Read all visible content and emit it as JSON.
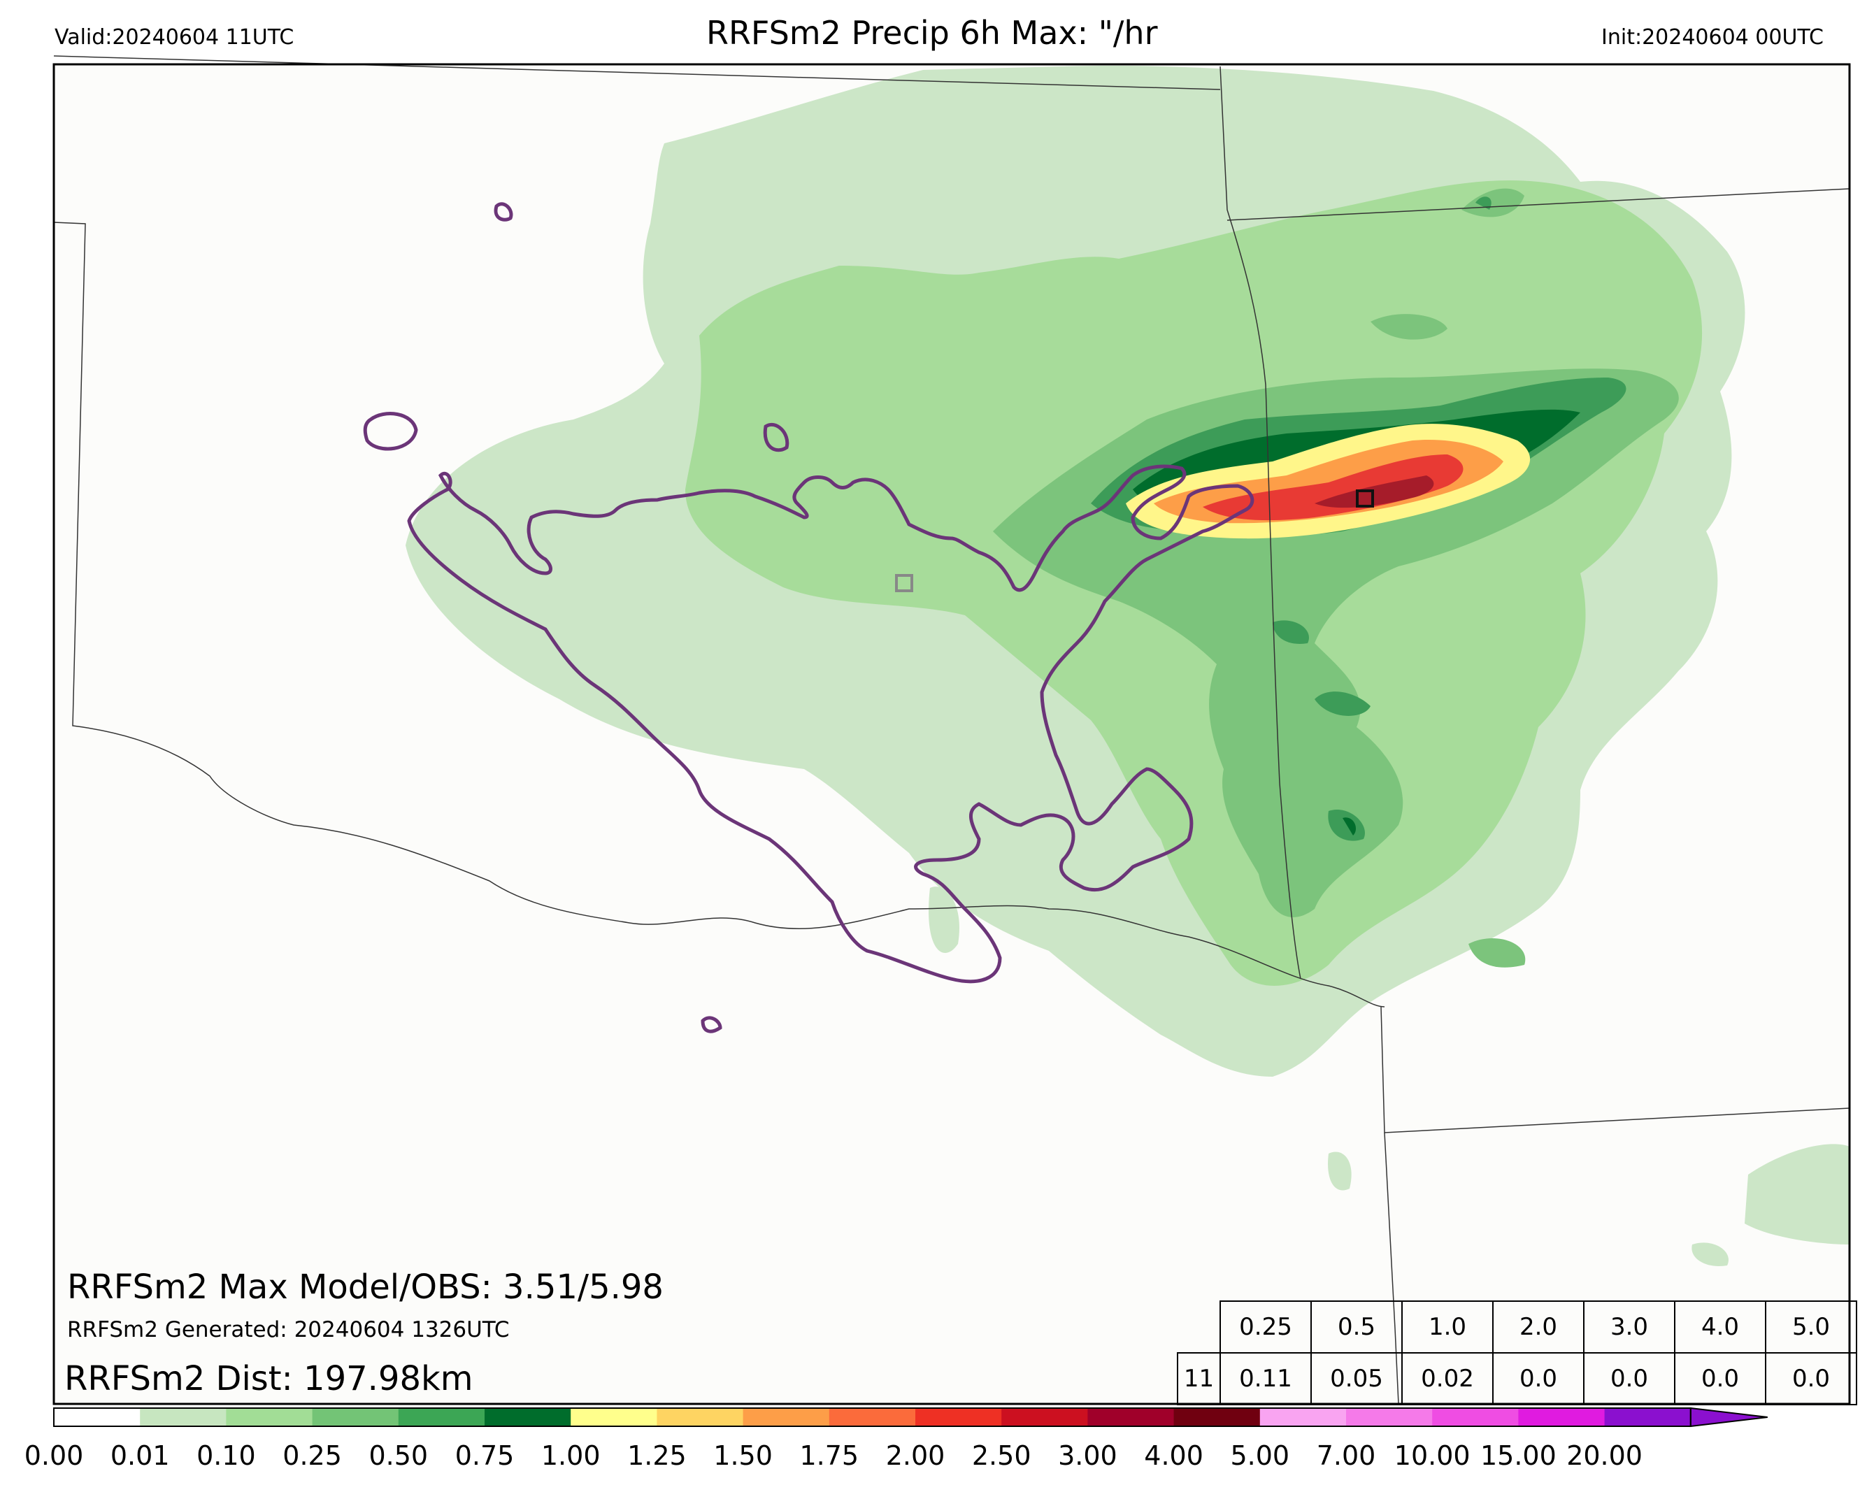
{
  "header": {
    "title": "RRFSm2 Precip 6h Max: \"/hr",
    "valid": "Valid:20240604 11UTC",
    "init": "Init:20240604 00UTC"
  },
  "info": {
    "max_model_obs": "RRFSm2 Max Model/OBS: 3.51/5.98",
    "generated": "RRFSm2 Generated: 20240604 1326UTC",
    "dist": "RRFSm2 Dist: 197.98km"
  },
  "stats_table": {
    "thresholds": [
      "0.25",
      "0.5",
      "1.0",
      "2.0",
      "3.0",
      "4.0",
      "5.0"
    ],
    "row_label": "11",
    "values": [
      "0.11",
      "0.05",
      "0.02",
      "0.0",
      "0.0",
      "0.0",
      "0.0"
    ]
  },
  "colorbar": {
    "labels": [
      "0.00",
      "0.01",
      "0.10",
      "0.25",
      "0.50",
      "0.75",
      "1.00",
      "1.25",
      "1.50",
      "1.75",
      "2.00",
      "2.50",
      "3.00",
      "4.00",
      "5.00",
      "7.00",
      "10.00",
      "15.00",
      "20.00"
    ],
    "colors": [
      "#ffffff",
      "#c7e6c0",
      "#a2dd96",
      "#73c476",
      "#3ca655",
      "#006d2c",
      "#ffff8c",
      "#fed462",
      "#fd9e48",
      "#fb6b3b",
      "#ee3024",
      "#cc1020",
      "#a0002a",
      "#700010",
      "#f9a4f1",
      "#f57ae9",
      "#ef4de3",
      "#e01be0",
      "#8b10cf"
    ]
  },
  "map": {
    "precip_colors": {
      "light": "#cce6c7",
      "medium": "#a7dc9a",
      "moderate": "#7cc47c",
      "heavy": "#3d9c58",
      "very_heavy": "#006d2c",
      "yellow": "#fff68a",
      "orange": "#fd9e48",
      "red": "#e83a34",
      "darkred": "#a61c2a"
    },
    "obs_contour_color": "#6b3578",
    "background": "#fcfcfa"
  }
}
